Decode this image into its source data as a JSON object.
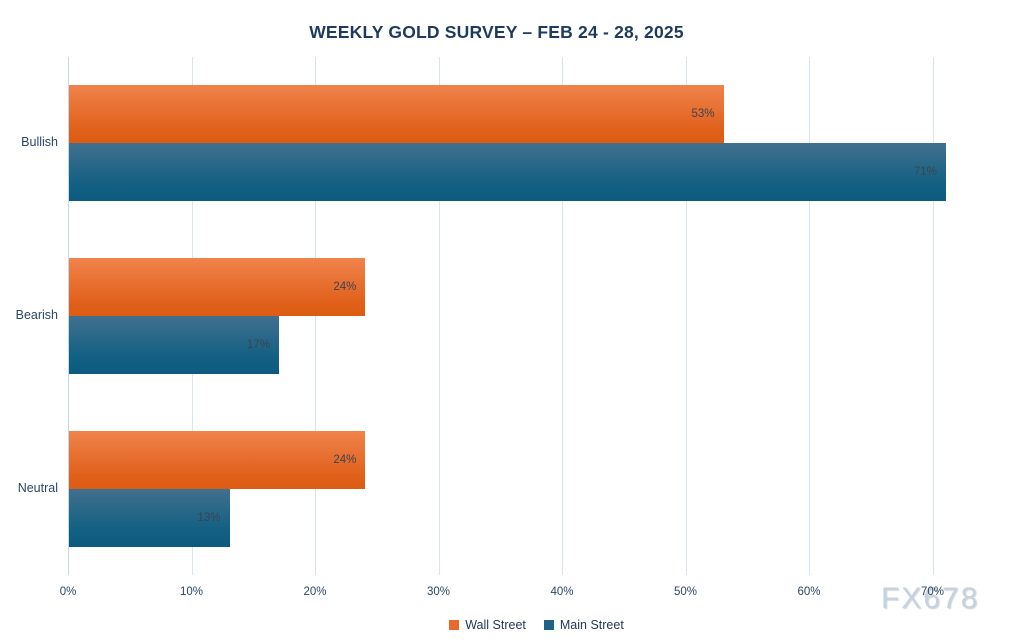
{
  "chart_data": {
    "type": "bar",
    "orientation": "horizontal",
    "title": "WEEKLY GOLD SURVEY – FEB 24 - 28, 2025",
    "categories": [
      "Bullish",
      "Bearish",
      "Neutral"
    ],
    "series": [
      {
        "name": "Wall Street",
        "values": [
          53,
          24,
          24
        ],
        "color": "#E8692A"
      },
      {
        "name": "Main Street",
        "values": [
          71,
          17,
          13
        ],
        "color": "#1F6289"
      }
    ],
    "value_suffix": "%",
    "xlim": [
      0,
      75.9
    ],
    "xticks": [
      0,
      10,
      20,
      30,
      40,
      50,
      60,
      70
    ],
    "xtick_labels": [
      "0%",
      "10%",
      "20%",
      "30%",
      "40%",
      "50%",
      "60%",
      "70%"
    ],
    "grid": true,
    "legend_position": "bottom",
    "title_color": "#1F3A5F",
    "label_color": "#2B4765",
    "gridline_color": "#D8E5F1"
  },
  "watermark": {
    "text": "FX678"
  }
}
